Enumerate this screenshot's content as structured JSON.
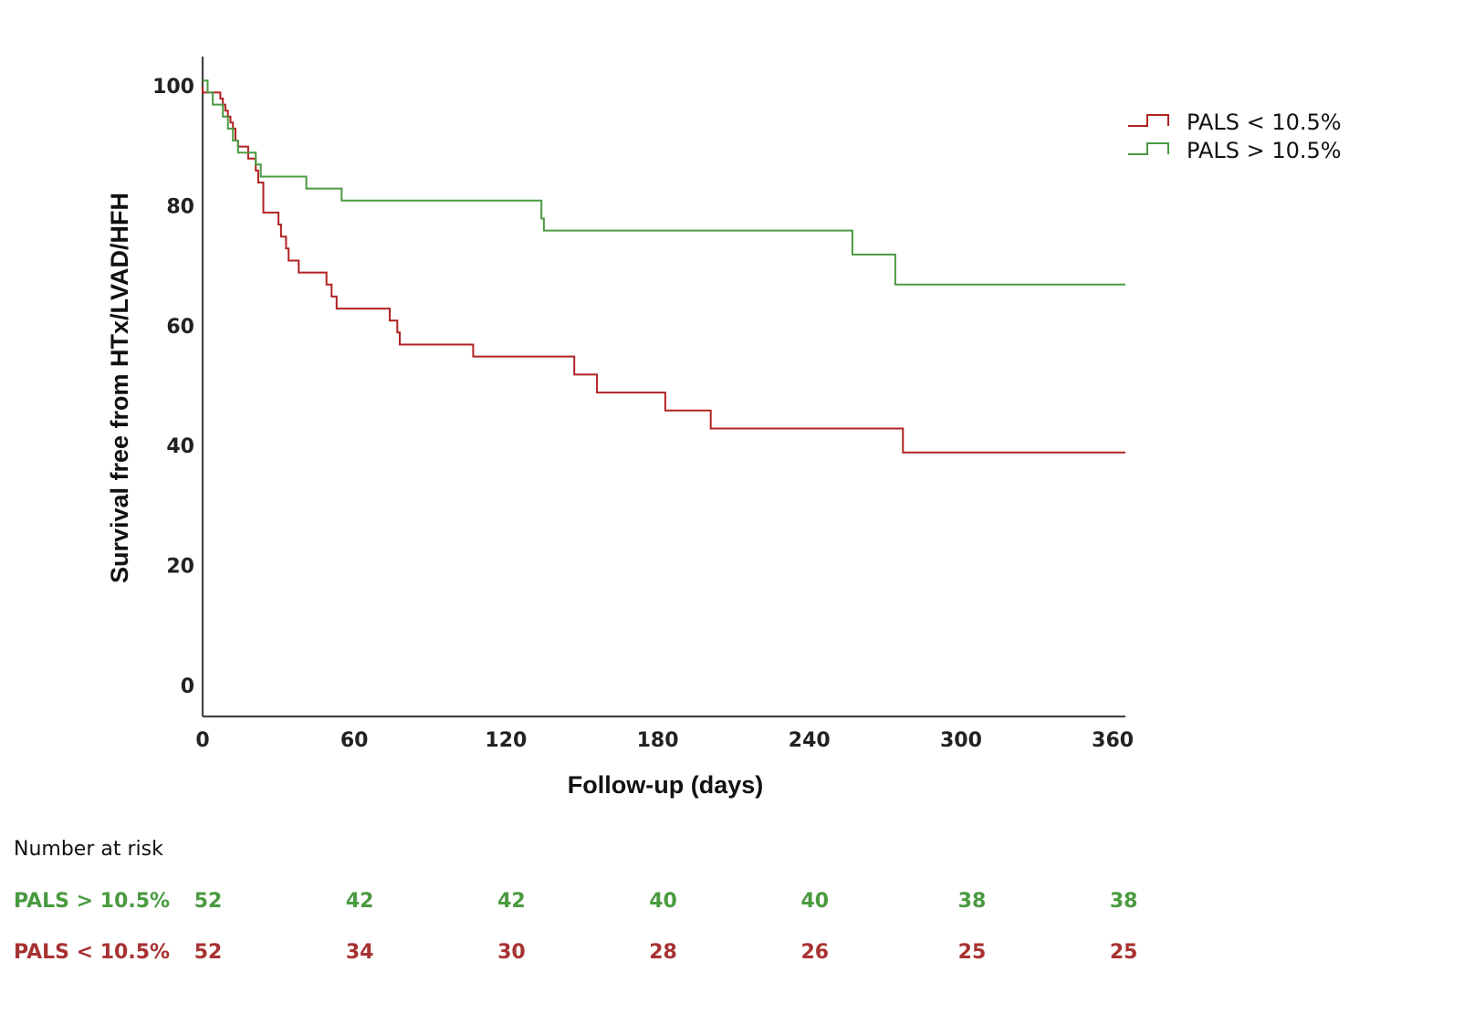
{
  "chart_data": {
    "type": "line",
    "subtype": "kaplan-meier-step",
    "title": "",
    "xlabel": "Follow-up (days)",
    "ylabel": "Survival free from HTx/LVAD/HFH",
    "xlim": [
      0,
      365
    ],
    "ylim": [
      -5,
      105
    ],
    "x_ticks": [
      0,
      60,
      120,
      180,
      240,
      300,
      360
    ],
    "y_ticks": [
      0,
      20,
      40,
      60,
      80,
      100
    ],
    "grid": false,
    "legend_position": "top-right",
    "series": [
      {
        "name": "PALS < 10.5%",
        "color": "#b22222",
        "points": [
          [
            0,
            100
          ],
          [
            0,
            99
          ],
          [
            7,
            99
          ],
          [
            7,
            98
          ],
          [
            8,
            98
          ],
          [
            8,
            97
          ],
          [
            9,
            97
          ],
          [
            9,
            96
          ],
          [
            10,
            96
          ],
          [
            10,
            95
          ],
          [
            11,
            95
          ],
          [
            11,
            94
          ],
          [
            12,
            94
          ],
          [
            12,
            93
          ],
          [
            13,
            93
          ],
          [
            13,
            91
          ],
          [
            14,
            91
          ],
          [
            14,
            90
          ],
          [
            18,
            90
          ],
          [
            18,
            88
          ],
          [
            21,
            88
          ],
          [
            21,
            86
          ],
          [
            22,
            86
          ],
          [
            22,
            84
          ],
          [
            24,
            84
          ],
          [
            24,
            79
          ],
          [
            30,
            79
          ],
          [
            30,
            77
          ],
          [
            31,
            77
          ],
          [
            31,
            75
          ],
          [
            33,
            75
          ],
          [
            33,
            73
          ],
          [
            34,
            73
          ],
          [
            34,
            71
          ],
          [
            38,
            71
          ],
          [
            38,
            69
          ],
          [
            49,
            69
          ],
          [
            49,
            67
          ],
          [
            51,
            67
          ],
          [
            51,
            65
          ],
          [
            53,
            65
          ],
          [
            53,
            63
          ],
          [
            74,
            63
          ],
          [
            74,
            61
          ],
          [
            77,
            61
          ],
          [
            77,
            59
          ],
          [
            78,
            59
          ],
          [
            78,
            57
          ],
          [
            107,
            57
          ],
          [
            107,
            55
          ],
          [
            147,
            55
          ],
          [
            147,
            52
          ],
          [
            156,
            52
          ],
          [
            156,
            49
          ],
          [
            183,
            49
          ],
          [
            183,
            46
          ],
          [
            201,
            46
          ],
          [
            201,
            43
          ],
          [
            277,
            43
          ],
          [
            277,
            39
          ],
          [
            365,
            39
          ]
        ]
      },
      {
        "name": "PALS > 10.5%",
        "color": "#4a9a40",
        "points": [
          [
            0,
            101
          ],
          [
            2,
            101
          ],
          [
            2,
            99
          ],
          [
            4,
            99
          ],
          [
            4,
            97
          ],
          [
            8,
            97
          ],
          [
            8,
            95
          ],
          [
            10,
            95
          ],
          [
            10,
            93
          ],
          [
            12,
            93
          ],
          [
            12,
            91
          ],
          [
            14,
            91
          ],
          [
            14,
            89
          ],
          [
            21,
            89
          ],
          [
            21,
            87
          ],
          [
            23,
            87
          ],
          [
            23,
            85
          ],
          [
            41,
            85
          ],
          [
            41,
            83
          ],
          [
            55,
            83
          ],
          [
            55,
            81
          ],
          [
            134,
            81
          ],
          [
            134,
            78
          ],
          [
            135,
            78
          ],
          [
            135,
            76
          ],
          [
            257,
            76
          ],
          [
            257,
            72
          ],
          [
            274,
            72
          ],
          [
            274,
            67
          ],
          [
            365,
            67
          ]
        ]
      }
    ]
  },
  "risk_table": {
    "title": "Number at risk",
    "rows": [
      {
        "label": "PALS > 10.5%",
        "color": "#4a9a40",
        "values": [
          "52",
          "42",
          "42",
          "40",
          "40",
          "38",
          "38"
        ]
      },
      {
        "label": "PALS < 10.5%",
        "color": "#a83232",
        "values": [
          "52",
          "34",
          "30",
          "28",
          "26",
          "25",
          "25"
        ]
      }
    ]
  }
}
